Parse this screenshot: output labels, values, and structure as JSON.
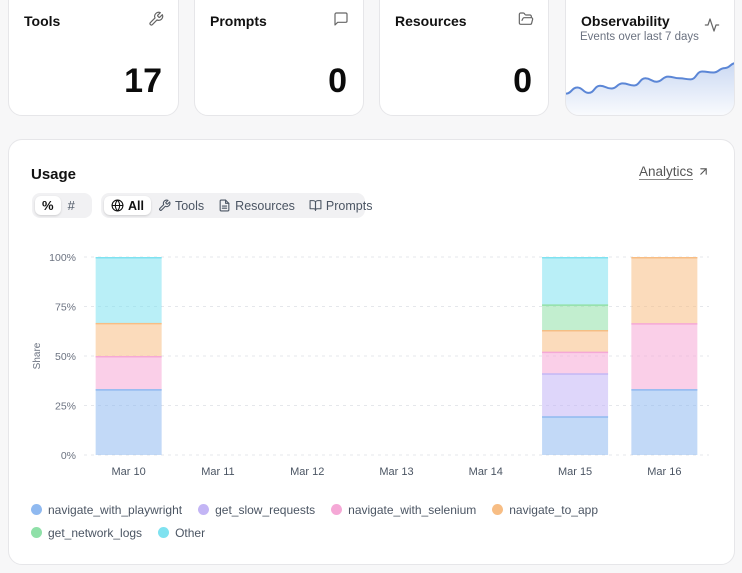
{
  "stats": [
    {
      "title": "Tools",
      "value": "17",
      "icon": "wrench-icon"
    },
    {
      "title": "Prompts",
      "value": "0",
      "icon": "message-square-icon"
    },
    {
      "title": "Resources",
      "value": "0",
      "icon": "folder-open-icon"
    }
  ],
  "observability": {
    "title": "Observability",
    "subtitle": "Events over last 7 days",
    "icon": "activity-icon",
    "sparkline": [
      0.1,
      0.28,
      0.12,
      0.33,
      0.25,
      0.4,
      0.34,
      0.55,
      0.45,
      0.6,
      0.55,
      0.52,
      0.75,
      0.72,
      0.85,
      1.0
    ]
  },
  "usage": {
    "title": "Usage",
    "analytics_label": "Analytics",
    "mode_options": [
      "%",
      "#"
    ],
    "mode_selected": "%",
    "filter_options": [
      {
        "label": "All",
        "icon": "globe-icon"
      },
      {
        "label": "Tools",
        "icon": "wrench-icon"
      },
      {
        "label": "Resources",
        "icon": "file-text-icon"
      },
      {
        "label": "Prompts",
        "icon": "book-open-icon"
      }
    ],
    "filter_selected": "All"
  },
  "chart_data": {
    "type": "bar",
    "stacked": true,
    "normalized": true,
    "categories": [
      "Mar 10",
      "Mar 11",
      "Mar 12",
      "Mar 13",
      "Mar 14",
      "Mar 15",
      "Mar 16"
    ],
    "ylabel": "Share",
    "yticks": [
      "0%",
      "25%",
      "50%",
      "75%",
      "100%"
    ],
    "ylim": [
      0,
      100
    ],
    "grid": true,
    "legend_position": "bottom",
    "series": [
      {
        "name": "navigate_with_playwright",
        "color": "#8fb9f0",
        "values": [
          33.3,
          0,
          0,
          0,
          0,
          19.6,
          33.3
        ]
      },
      {
        "name": "get_slow_requests",
        "color": "#c3b5f5",
        "values": [
          0,
          0,
          0,
          0,
          0,
          21.7,
          0
        ]
      },
      {
        "name": "navigate_with_selenium",
        "color": "#f5a8d6",
        "values": [
          16.7,
          0,
          0,
          0,
          0,
          10.9,
          33.3
        ]
      },
      {
        "name": "navigate_to_app",
        "color": "#f7bd84",
        "values": [
          16.7,
          0,
          0,
          0,
          0,
          10.9,
          33.4
        ]
      },
      {
        "name": "get_network_logs",
        "color": "#8fe0a8",
        "values": [
          0,
          0,
          0,
          0,
          0,
          13.0,
          0
        ]
      },
      {
        "name": "Other",
        "color": "#7fe2f0",
        "values": [
          33.3,
          0,
          0,
          0,
          0,
          23.9,
          0
        ]
      }
    ]
  }
}
